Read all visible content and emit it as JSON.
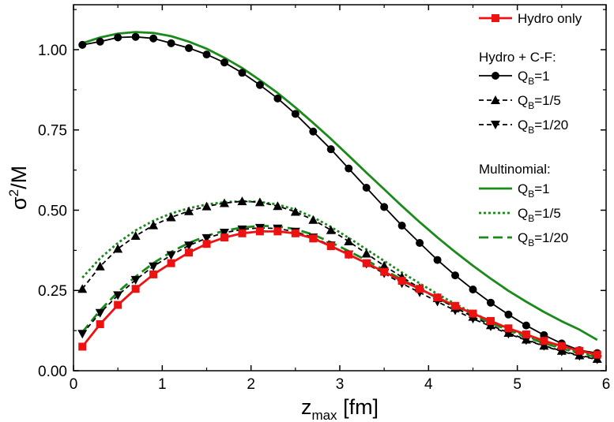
{
  "chart_data": {
    "type": "line",
    "xlabel_main": "z",
    "xlabel_sub": "max",
    "xlabel_unit": " [fm]",
    "ylabel_main": "σ",
    "ylabel_sup": "2",
    "ylabel_rest": "/M",
    "xlim": [
      0,
      6
    ],
    "ylim": [
      0,
      1.14
    ],
    "x_ticks": [
      "0",
      "1",
      "2",
      "3",
      "4",
      "5",
      "6"
    ],
    "y_ticks": [
      "0.00",
      "0.25",
      "0.50",
      "0.75",
      "1.00"
    ],
    "legend_group1": "Hydro + C-F:",
    "legend_group2": "Multinomial:",
    "colors": {
      "red": "#ee1111",
      "black": "#000000",
      "green": "#1a8a1a"
    },
    "series": [
      {
        "name": "Hydro only",
        "group": "hydro",
        "color": "#ee1111",
        "dash": "",
        "marker": "square",
        "x": [
          0.1,
          0.3,
          0.5,
          0.7,
          0.9,
          1.1,
          1.3,
          1.5,
          1.7,
          1.9,
          2.1,
          2.3,
          2.5,
          2.7,
          2.9,
          3.1,
          3.3,
          3.5,
          3.7,
          3.9,
          4.1,
          4.3,
          4.5,
          4.7,
          4.9,
          5.1,
          5.3,
          5.5,
          5.7,
          5.9
        ],
        "y": [
          0.075,
          0.145,
          0.205,
          0.255,
          0.3,
          0.335,
          0.368,
          0.395,
          0.415,
          0.428,
          0.434,
          0.434,
          0.428,
          0.412,
          0.388,
          0.362,
          0.335,
          0.308,
          0.28,
          0.255,
          0.228,
          0.202,
          0.178,
          0.155,
          0.132,
          0.113,
          0.093,
          0.077,
          0.062,
          0.05
        ]
      },
      {
        "name": "Q",
        "sub": "B",
        "suffix": "=1",
        "group": "cf",
        "color": "#000000",
        "dash": "",
        "marker": "circle",
        "x": [
          0.1,
          0.3,
          0.5,
          0.7,
          0.9,
          1.1,
          1.3,
          1.5,
          1.7,
          1.9,
          2.1,
          2.3,
          2.5,
          2.7,
          2.9,
          3.1,
          3.3,
          3.5,
          3.7,
          3.9,
          4.1,
          4.3,
          4.5,
          4.7,
          4.9,
          5.1,
          5.3,
          5.5,
          5.7,
          5.9
        ],
        "y": [
          1.015,
          1.025,
          1.038,
          1.04,
          1.035,
          1.02,
          1.005,
          0.985,
          0.96,
          0.928,
          0.89,
          0.848,
          0.8,
          0.745,
          0.69,
          0.63,
          0.57,
          0.51,
          0.452,
          0.398,
          0.345,
          0.297,
          0.253,
          0.212,
          0.175,
          0.141,
          0.111,
          0.085,
          0.064,
          0.055
        ]
      },
      {
        "name": "Q",
        "sub": "B",
        "suffix": "=1/5",
        "group": "cf",
        "color": "#000000",
        "dash": "6,4",
        "marker": "triangle-up",
        "x": [
          0.1,
          0.3,
          0.5,
          0.7,
          0.9,
          1.1,
          1.3,
          1.5,
          1.7,
          1.9,
          2.1,
          2.3,
          2.5,
          2.7,
          2.9,
          3.1,
          3.3,
          3.5,
          3.7,
          3.9,
          4.1,
          4.3,
          4.5,
          4.7,
          4.9,
          5.1,
          5.3,
          5.5,
          5.7,
          5.9
        ],
        "y": [
          0.255,
          0.325,
          0.38,
          0.42,
          0.453,
          0.478,
          0.497,
          0.512,
          0.522,
          0.528,
          0.525,
          0.513,
          0.495,
          0.47,
          0.438,
          0.403,
          0.365,
          0.327,
          0.292,
          0.258,
          0.226,
          0.196,
          0.168,
          0.142,
          0.118,
          0.097,
          0.078,
          0.062,
          0.048,
          0.037
        ]
      },
      {
        "name": "Q",
        "sub": "B",
        "suffix": "=1/20",
        "group": "cf",
        "color": "#000000",
        "dash": "6,4",
        "marker": "triangle-down",
        "x": [
          0.1,
          0.3,
          0.5,
          0.7,
          0.9,
          1.1,
          1.3,
          1.5,
          1.7,
          1.9,
          2.1,
          2.3,
          2.5,
          2.7,
          2.9,
          3.1,
          3.3,
          3.5,
          3.7,
          3.9,
          4.1,
          4.3,
          4.5,
          4.7,
          4.9,
          5.1,
          5.3,
          5.5,
          5.7,
          5.9
        ],
        "y": [
          0.115,
          0.18,
          0.235,
          0.283,
          0.325,
          0.36,
          0.39,
          0.413,
          0.43,
          0.44,
          0.445,
          0.443,
          0.433,
          0.415,
          0.39,
          0.362,
          0.333,
          0.303,
          0.272,
          0.244,
          0.215,
          0.188,
          0.162,
          0.138,
          0.115,
          0.095,
          0.077,
          0.06,
          0.046,
          0.035
        ]
      },
      {
        "name": "Q",
        "sub": "B",
        "suffix": "=1",
        "group": "multi",
        "color": "#1a8a1a",
        "dash": "",
        "marker": "none",
        "x": [
          0.1,
          0.3,
          0.5,
          0.7,
          0.9,
          1.1,
          1.3,
          1.5,
          1.7,
          1.9,
          2.1,
          2.3,
          2.5,
          2.7,
          2.9,
          3.1,
          3.3,
          3.5,
          3.7,
          3.9,
          4.1,
          4.3,
          4.5,
          4.7,
          4.9,
          5.1,
          5.3,
          5.5,
          5.7,
          5.9
        ],
        "y": [
          1.02,
          1.038,
          1.05,
          1.055,
          1.052,
          1.042,
          1.025,
          1.003,
          0.975,
          0.943,
          0.905,
          0.865,
          0.82,
          0.772,
          0.722,
          0.67,
          0.617,
          0.565,
          0.513,
          0.463,
          0.415,
          0.37,
          0.327,
          0.287,
          0.249,
          0.215,
          0.183,
          0.154,
          0.128,
          0.096
        ]
      },
      {
        "name": "Q",
        "sub": "B",
        "suffix": "=1/5",
        "group": "multi",
        "color": "#1a8a1a",
        "dash": "3,3",
        "marker": "none",
        "x": [
          0.1,
          0.3,
          0.5,
          0.7,
          0.9,
          1.1,
          1.3,
          1.5,
          1.7,
          1.9,
          2.1,
          2.3,
          2.5,
          2.7,
          2.9,
          3.1,
          3.3,
          3.5,
          3.7,
          3.9,
          4.1,
          4.3,
          4.5,
          4.7,
          4.9,
          5.1,
          5.3,
          5.5,
          5.7,
          5.9
        ],
        "y": [
          0.29,
          0.35,
          0.398,
          0.437,
          0.467,
          0.49,
          0.506,
          0.518,
          0.525,
          0.528,
          0.526,
          0.518,
          0.502,
          0.478,
          0.448,
          0.414,
          0.378,
          0.342,
          0.306,
          0.272,
          0.239,
          0.208,
          0.18,
          0.154,
          0.13,
          0.108,
          0.089,
          0.072,
          0.057,
          0.044
        ]
      },
      {
        "name": "Q",
        "sub": "B",
        "suffix": "=1/20",
        "group": "multi",
        "color": "#1a8a1a",
        "dash": "12,6",
        "marker": "none",
        "x": [
          0.1,
          0.3,
          0.5,
          0.7,
          0.9,
          1.1,
          1.3,
          1.5,
          1.7,
          1.9,
          2.1,
          2.3,
          2.5,
          2.7,
          2.9,
          3.1,
          3.3,
          3.5,
          3.7,
          3.9,
          4.1,
          4.3,
          4.5,
          4.7,
          4.9,
          5.1,
          5.3,
          5.5,
          5.7,
          5.9
        ],
        "y": [
          0.12,
          0.188,
          0.245,
          0.293,
          0.335,
          0.37,
          0.398,
          0.42,
          0.436,
          0.446,
          0.451,
          0.45,
          0.441,
          0.424,
          0.4,
          0.373,
          0.344,
          0.314,
          0.284,
          0.255,
          0.226,
          0.199,
          0.173,
          0.149,
          0.126,
          0.105,
          0.086,
          0.069,
          0.054,
          0.042
        ]
      }
    ]
  }
}
